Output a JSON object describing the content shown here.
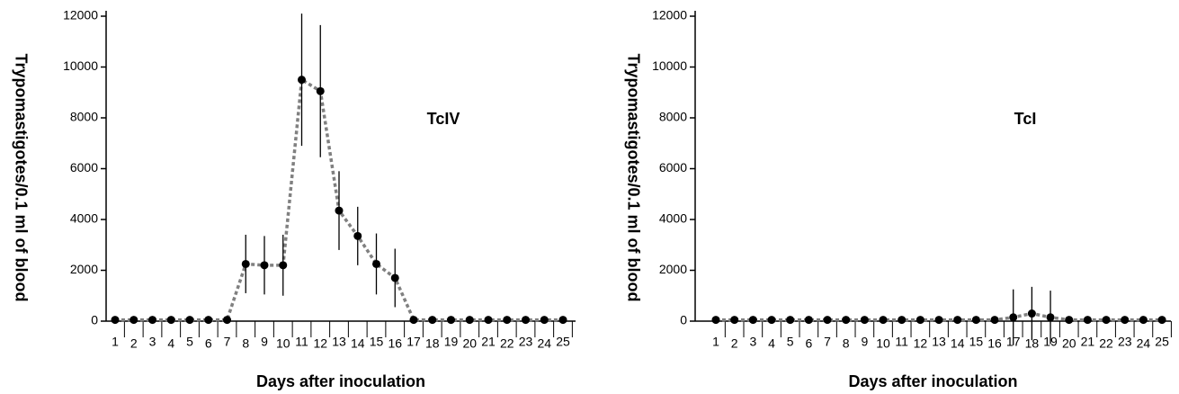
{
  "chart_data": [
    {
      "type": "line",
      "annotation": "TcIV",
      "x_label": "Days after inoculation",
      "y_label": "Trypomastigotes/0.1 ml of blood",
      "categories": [
        "1",
        "2",
        "3",
        "4",
        "5",
        "6",
        "7",
        "8",
        "9",
        "10",
        "11",
        "12",
        "13",
        "14",
        "15",
        "16",
        "17",
        "18",
        "19",
        "20",
        "21",
        "22",
        "23",
        "24",
        "25"
      ],
      "series": [
        {
          "color": "#808080",
          "marker_color": "#000000",
          "values": [
            50,
            50,
            50,
            50,
            50,
            50,
            50,
            2250,
            2200,
            2200,
            9500,
            9050,
            4350,
            3350,
            2250,
            1700,
            50,
            50,
            50,
            50,
            50,
            50,
            50,
            50,
            50
          ],
          "errors": [
            0,
            0,
            0,
            0,
            0,
            0,
            0,
            1150,
            1150,
            1200,
            2600,
            2600,
            1550,
            1150,
            1200,
            1150,
            0,
            0,
            0,
            0,
            0,
            0,
            0,
            0,
            0
          ]
        }
      ],
      "ylim": [
        0,
        12000
      ],
      "yticks": [
        0,
        2000,
        4000,
        6000,
        8000,
        10000,
        12000
      ]
    },
    {
      "type": "line",
      "annotation": "TcI",
      "x_label": "Days after inoculation",
      "y_label": "Trypomastigotes/0.1 ml of blood",
      "categories": [
        "1",
        "2",
        "3",
        "4",
        "5",
        "6",
        "7",
        "8",
        "9",
        "10",
        "11",
        "12",
        "13",
        "14",
        "15",
        "16",
        "17",
        "18",
        "19",
        "20",
        "21",
        "22",
        "23",
        "24",
        "25"
      ],
      "series": [
        {
          "color": "#808080",
          "marker_color": "#000000",
          "values": [
            50,
            50,
            50,
            50,
            50,
            50,
            50,
            50,
            50,
            50,
            50,
            50,
            50,
            50,
            50,
            50,
            150,
            300,
            150,
            50,
            50,
            50,
            50,
            50,
            50
          ],
          "errors": [
            0,
            0,
            0,
            0,
            0,
            0,
            0,
            0,
            0,
            0,
            0,
            0,
            0,
            0,
            0,
            0,
            1100,
            1050,
            1050,
            0,
            0,
            0,
            0,
            0,
            0
          ]
        }
      ],
      "ylim": [
        0,
        12000
      ],
      "yticks": [
        0,
        2000,
        4000,
        6000,
        8000,
        10000,
        12000
      ]
    }
  ]
}
